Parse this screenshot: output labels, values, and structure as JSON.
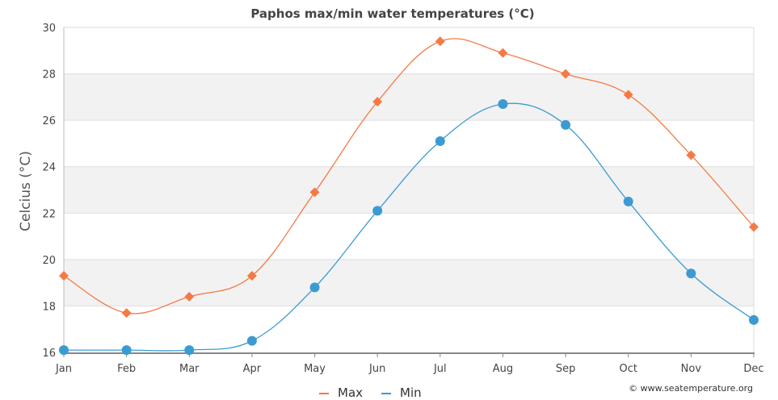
{
  "chart_data": {
    "type": "line",
    "title": "Paphos max/min water temperatures (°C)",
    "xlabel": "",
    "ylabel": "Celcius (°C)",
    "categories": [
      "Jan",
      "Feb",
      "Mar",
      "Apr",
      "May",
      "Jun",
      "Jul",
      "Aug",
      "Sep",
      "Oct",
      "Nov",
      "Dec"
    ],
    "ylim": [
      16,
      30
    ],
    "yticks": [
      16,
      18,
      20,
      22,
      24,
      26,
      28,
      30
    ],
    "series": [
      {
        "name": "Max",
        "color": "#f47a45",
        "marker": "diamond",
        "values": [
          19.3,
          17.7,
          18.4,
          19.3,
          22.9,
          26.8,
          29.4,
          28.9,
          28.0,
          27.1,
          24.5,
          21.4
        ]
      },
      {
        "name": "Min",
        "color": "#3b9bd1",
        "marker": "circle",
        "values": [
          16.1,
          16.1,
          16.1,
          16.5,
          18.8,
          22.1,
          25.1,
          26.7,
          25.8,
          22.5,
          19.4,
          17.4
        ]
      }
    ],
    "grid": true,
    "legend_position": "bottom-center",
    "band_color": "#f2f2f2",
    "grid_color": "#dedede"
  },
  "credit": "© www.seatemperature.org"
}
